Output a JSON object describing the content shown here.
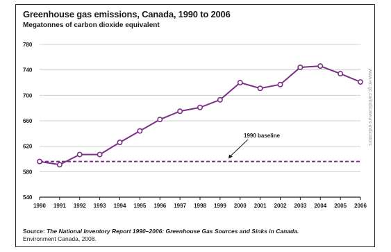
{
  "chart_data": {
    "type": "line",
    "title": "Greenhouse gas emissions, Canada, 1990 to 2006",
    "subtitle": "Megatonnes of carbon dioxide equivalent",
    "categories": [
      "1990",
      "1991",
      "1992",
      "1993",
      "1994",
      "1995",
      "1996",
      "1997",
      "1998",
      "1999",
      "2000",
      "2001",
      "2002",
      "2003",
      "2004",
      "2005",
      "2006"
    ],
    "series": [
      {
        "values": [
          596,
          591,
          607,
          607,
          626,
          644,
          662,
          675,
          681,
          693,
          720,
          711,
          717,
          744,
          746,
          734,
          721
        ]
      }
    ],
    "y_ticks": [
      540,
      580,
      620,
      660,
      700,
      740,
      780
    ],
    "y_tick_labels": [
      "540",
      "580",
      "620",
      "660",
      "700",
      "740",
      "780"
    ],
    "ylim": [
      540,
      780
    ],
    "grid": true,
    "baseline": {
      "label": "1990 baseline",
      "value": 596
    },
    "watermark": "www.ec.gc.ca/indicateurs-indicators",
    "colors": {
      "series": "#7b2f86",
      "grid": "#cfcfcf",
      "axis": "#1a1a1a"
    }
  },
  "source": {
    "label": "Source:",
    "italic": "The National Inventory Report 1990–2006: Greenhouse Gas Sources and Sinks in Canada.",
    "line2": "Environment Canada, 2008."
  }
}
